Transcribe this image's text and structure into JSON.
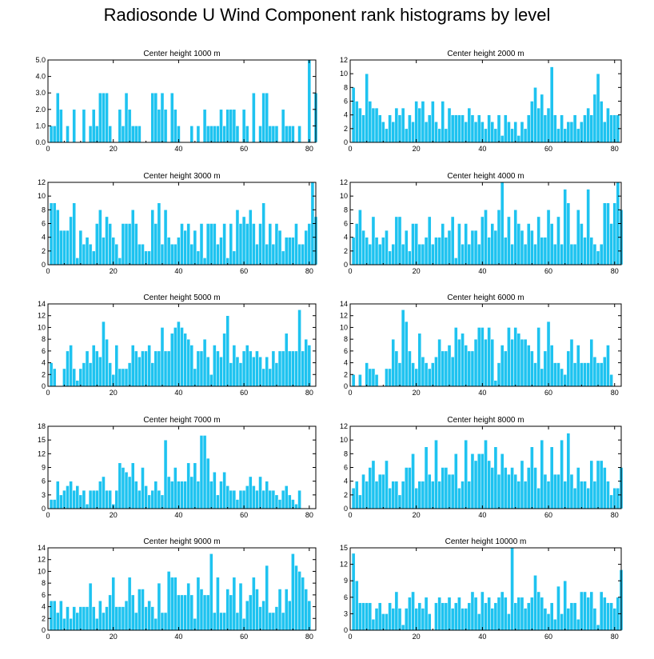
{
  "title": "Radiosonde U Wind Component rank histograms by level",
  "colors": {
    "bar": "#1EC3F0",
    "bar_edge": "#ffffff",
    "axis": "#000000"
  },
  "chart_data": [
    {
      "type": "bar",
      "title": "Center height 1000 m",
      "xlim": [
        0,
        82
      ],
      "xticks": [
        0,
        20,
        40,
        60,
        80
      ],
      "ylim": [
        0,
        5
      ],
      "yticks": [
        0,
        1,
        2,
        3,
        4,
        5
      ],
      "ytick_labels": [
        "0.0",
        "1.0",
        "2.0",
        "3.0",
        "4.0",
        "5.0"
      ],
      "values": [
        1,
        1,
        3,
        2,
        0,
        1,
        0,
        2,
        0,
        0,
        2,
        0,
        1,
        2,
        1,
        3,
        3,
        3,
        1,
        0,
        0,
        2,
        1,
        3,
        2,
        1,
        1,
        1,
        0,
        0,
        0,
        3,
        3,
        2,
        3,
        2,
        0,
        3,
        2,
        1,
        0,
        0,
        0,
        1,
        0,
        1,
        0,
        2,
        1,
        1,
        1,
        1,
        2,
        1,
        2,
        2,
        2,
        1,
        0,
        2,
        1,
        0,
        3,
        0,
        1,
        3,
        3,
        1,
        1,
        1,
        0,
        2,
        1,
        1,
        1,
        0,
        1,
        0,
        0,
        5,
        0,
        3
      ]
    },
    {
      "type": "bar",
      "title": "Center height 2000 m",
      "xlim": [
        0,
        82
      ],
      "xticks": [
        0,
        20,
        40,
        60,
        80
      ],
      "ylim": [
        0,
        12
      ],
      "yticks": [
        0,
        2,
        4,
        6,
        8,
        10,
        12
      ],
      "ytick_labels": [
        "0",
        "2",
        "4",
        "6",
        "8",
        "10",
        "12"
      ],
      "values": [
        8,
        6,
        5,
        4,
        10,
        6,
        5,
        5,
        4,
        3,
        2,
        4,
        3,
        5,
        4,
        5,
        2,
        4,
        3,
        6,
        5,
        6,
        3,
        4,
        6,
        3,
        2,
        6,
        2,
        5,
        4,
        4,
        4,
        4,
        3,
        5,
        4,
        3,
        4,
        3,
        2,
        4,
        3,
        2,
        4,
        1,
        4,
        3,
        2,
        3,
        1,
        3,
        2,
        4,
        6,
        8,
        5,
        7,
        4,
        5,
        11,
        4,
        2,
        4,
        2,
        3,
        3,
        4,
        2,
        3,
        4,
        5,
        4,
        7,
        10,
        6,
        3,
        5,
        4,
        4,
        4
      ]
    },
    {
      "type": "bar",
      "title": "Center height 3000 m",
      "xlim": [
        0,
        82
      ],
      "xticks": [
        0,
        20,
        40,
        60,
        80
      ],
      "ylim": [
        0,
        12
      ],
      "yticks": [
        0,
        2,
        4,
        6,
        8,
        10,
        12
      ],
      "ytick_labels": [
        "0",
        "2",
        "4",
        "6",
        "8",
        "10",
        "12"
      ],
      "values": [
        9,
        9,
        8,
        5,
        5,
        5,
        7,
        9,
        1,
        5,
        3,
        4,
        3,
        2,
        6,
        8,
        4,
        7,
        6,
        4,
        3,
        1,
        6,
        6,
        6,
        8,
        6,
        3,
        3,
        2,
        2,
        8,
        6,
        9,
        3,
        8,
        4,
        3,
        3,
        4,
        6,
        5,
        6,
        3,
        5,
        2,
        6,
        1,
        6,
        6,
        6,
        3,
        4,
        6,
        1,
        6,
        2,
        8,
        6,
        7,
        6,
        8,
        6,
        3,
        6,
        9,
        3,
        6,
        3,
        6,
        5,
        2,
        4,
        4,
        4,
        6,
        3,
        3,
        5,
        6,
        12,
        7
      ]
    },
    {
      "type": "bar",
      "title": "Center height 4000 m",
      "xlim": [
        0,
        82
      ],
      "xticks": [
        0,
        20,
        40,
        60,
        80
      ],
      "ylim": [
        0,
        12
      ],
      "yticks": [
        0,
        2,
        4,
        6,
        8,
        10,
        12
      ],
      "ytick_labels": [
        "0",
        "2",
        "4",
        "6",
        "8",
        "10",
        "12"
      ],
      "values": [
        4,
        6,
        8,
        5,
        4,
        3,
        7,
        4,
        3,
        4,
        5,
        2,
        3,
        7,
        7,
        3,
        5,
        2,
        6,
        6,
        3,
        3,
        4,
        7,
        3,
        4,
        4,
        6,
        4,
        5,
        7,
        1,
        6,
        3,
        6,
        3,
        5,
        5,
        3,
        7,
        8,
        4,
        6,
        5,
        8,
        12,
        4,
        7,
        3,
        8,
        6,
        5,
        3,
        6,
        5,
        3,
        7,
        4,
        4,
        8,
        6,
        3,
        7,
        3,
        11,
        9,
        3,
        3,
        8,
        6,
        4,
        11,
        4,
        3,
        2,
        3,
        9,
        9,
        6,
        9,
        12,
        8
      ]
    },
    {
      "type": "bar",
      "title": "Center height 5000 m",
      "xlim": [
        0,
        82
      ],
      "xticks": [
        0,
        20,
        40,
        60,
        80
      ],
      "ylim": [
        0,
        14
      ],
      "yticks": [
        0,
        2,
        4,
        6,
        8,
        10,
        12,
        14
      ],
      "ytick_labels": [
        "0",
        "2",
        "4",
        "6",
        "8",
        "10",
        "12",
        "14"
      ],
      "values": [
        4,
        3,
        0,
        0,
        3,
        6,
        7,
        3,
        1,
        3,
        4,
        6,
        4,
        7,
        6,
        5,
        11,
        8,
        4,
        2,
        7,
        3,
        3,
        3,
        4,
        7,
        6,
        5,
        6,
        6,
        7,
        4,
        6,
        6,
        10,
        6,
        6,
        9,
        10,
        11,
        10,
        9,
        8,
        7,
        3,
        6,
        6,
        8,
        5,
        2,
        7,
        6,
        5,
        9,
        12,
        4,
        7,
        5,
        4,
        6,
        7,
        6,
        5,
        6,
        5,
        3,
        5,
        3,
        6,
        4,
        6,
        6,
        9,
        6,
        6,
        6,
        13,
        6,
        8,
        7
      ]
    },
    {
      "type": "bar",
      "title": "Center height 6000 m",
      "xlim": [
        0,
        82
      ],
      "xticks": [
        0,
        20,
        40,
        60,
        80
      ],
      "ylim": [
        0,
        14
      ],
      "yticks": [
        0,
        2,
        4,
        6,
        8,
        10,
        12,
        14
      ],
      "ytick_labels": [
        "0",
        "2",
        "4",
        "6",
        "8",
        "10",
        "12",
        "14"
      ],
      "values": [
        2,
        0,
        2,
        0,
        4,
        3,
        3,
        2,
        0,
        0,
        3,
        3,
        8,
        6,
        4,
        13,
        11,
        6,
        4,
        3,
        9,
        5,
        4,
        3,
        4,
        5,
        8,
        6,
        6,
        7,
        5,
        10,
        8,
        9,
        7,
        6,
        6,
        8,
        10,
        10,
        8,
        10,
        8,
        1,
        4,
        7,
        6,
        10,
        8,
        10,
        9,
        8,
        8,
        7,
        6,
        4,
        10,
        3,
        6,
        11,
        7,
        4,
        4,
        3,
        2,
        6,
        8,
        4,
        7,
        4,
        4,
        4,
        8,
        5,
        4,
        4,
        5,
        7,
        2,
        0,
        0,
        0
      ]
    },
    {
      "type": "bar",
      "title": "Center height 7000 m",
      "xlim": [
        0,
        82
      ],
      "xticks": [
        0,
        20,
        40,
        60,
        80
      ],
      "ylim": [
        0,
        18
      ],
      "yticks": [
        0,
        3,
        6,
        9,
        12,
        15,
        18
      ],
      "ytick_labels": [
        "0",
        "3",
        "6",
        "9",
        "12",
        "15",
        "18"
      ],
      "values": [
        2,
        2,
        6,
        3,
        4,
        5,
        6,
        4,
        5,
        3,
        4,
        1,
        4,
        4,
        4,
        6,
        7,
        4,
        4,
        1,
        4,
        10,
        9,
        8,
        7,
        10,
        6,
        4,
        9,
        5,
        3,
        4,
        6,
        4,
        3,
        15,
        7,
        6,
        9,
        6,
        6,
        6,
        10,
        7,
        10,
        6,
        16,
        16,
        11,
        6,
        8,
        3,
        6,
        8,
        5,
        4,
        4,
        2,
        4,
        4,
        5,
        7,
        5,
        4,
        7,
        4,
        6,
        4,
        4,
        3,
        2,
        4,
        5,
        3,
        2,
        1,
        4,
        0,
        0,
        0,
        0,
        0
      ]
    },
    {
      "type": "bar",
      "title": "Center height 8000 m",
      "xlim": [
        0,
        82
      ],
      "xticks": [
        0,
        20,
        40,
        60,
        80
      ],
      "ylim": [
        0,
        12
      ],
      "yticks": [
        0,
        2,
        4,
        6,
        8,
        10,
        12
      ],
      "ytick_labels": [
        "0",
        "2",
        "4",
        "6",
        "8",
        "10",
        "12"
      ],
      "values": [
        3,
        4,
        2,
        5,
        4,
        6,
        7,
        4,
        5,
        5,
        7,
        3,
        4,
        4,
        2,
        4,
        6,
        6,
        8,
        3,
        4,
        4,
        9,
        5,
        4,
        10,
        4,
        6,
        6,
        5,
        5,
        8,
        3,
        4,
        10,
        4,
        8,
        7,
        8,
        8,
        10,
        7,
        6,
        9,
        5,
        8,
        6,
        5,
        6,
        5,
        4,
        7,
        4,
        6,
        9,
        6,
        3,
        10,
        5,
        4,
        9,
        5,
        5,
        10,
        4,
        11,
        5,
        3,
        6,
        4,
        4,
        3,
        7,
        4,
        7,
        7,
        6,
        4,
        2,
        3,
        3,
        6
      ]
    },
    {
      "type": "bar",
      "title": "Center height 9000 m",
      "xlim": [
        0,
        82
      ],
      "xticks": [
        0,
        20,
        40,
        60,
        80
      ],
      "ylim": [
        0,
        14
      ],
      "yticks": [
        0,
        2,
        4,
        6,
        8,
        10,
        12,
        14
      ],
      "ytick_labels": [
        "0",
        "2",
        "4",
        "6",
        "8",
        "10",
        "12",
        "14"
      ],
      "values": [
        5,
        5,
        3,
        5,
        2,
        4,
        2,
        4,
        3,
        4,
        4,
        4,
        8,
        4,
        2,
        5,
        3,
        4,
        6,
        9,
        4,
        4,
        4,
        5,
        9,
        6,
        3,
        7,
        7,
        4,
        5,
        4,
        2,
        8,
        3,
        3,
        10,
        9,
        9,
        6,
        6,
        6,
        8,
        6,
        2,
        9,
        7,
        6,
        6,
        13,
        3,
        9,
        3,
        3,
        7,
        6,
        9,
        3,
        8,
        2,
        5,
        6,
        9,
        7,
        4,
        5,
        11,
        3,
        3,
        4,
        7,
        3,
        7,
        5,
        13,
        11,
        10,
        9,
        7,
        5
      ]
    },
    {
      "type": "bar",
      "title": "Center height 10000 m",
      "xlim": [
        0,
        82
      ],
      "xticks": [
        0,
        20,
        40,
        60,
        80
      ],
      "ylim": [
        0,
        15
      ],
      "yticks": [
        0,
        3,
        6,
        9,
        12,
        15
      ],
      "ytick_labels": [
        "0",
        "3",
        "6",
        "9",
        "12",
        "15"
      ],
      "values": [
        14,
        9,
        5,
        5,
        5,
        5,
        2,
        4,
        5,
        3,
        3,
        5,
        4,
        7,
        4,
        1,
        4,
        6,
        7,
        4,
        5,
        4,
        6,
        3,
        0,
        5,
        6,
        5,
        5,
        6,
        4,
        5,
        6,
        4,
        4,
        5,
        7,
        6,
        3,
        7,
        5,
        6,
        4,
        5,
        6,
        7,
        6,
        3,
        15,
        5,
        6,
        6,
        4,
        5,
        6,
        10,
        7,
        6,
        4,
        3,
        5,
        2,
        8,
        3,
        9,
        4,
        5,
        5,
        2,
        7,
        7,
        6,
        7,
        4,
        1,
        7,
        6,
        5,
        5,
        4,
        6,
        11
      ]
    }
  ]
}
